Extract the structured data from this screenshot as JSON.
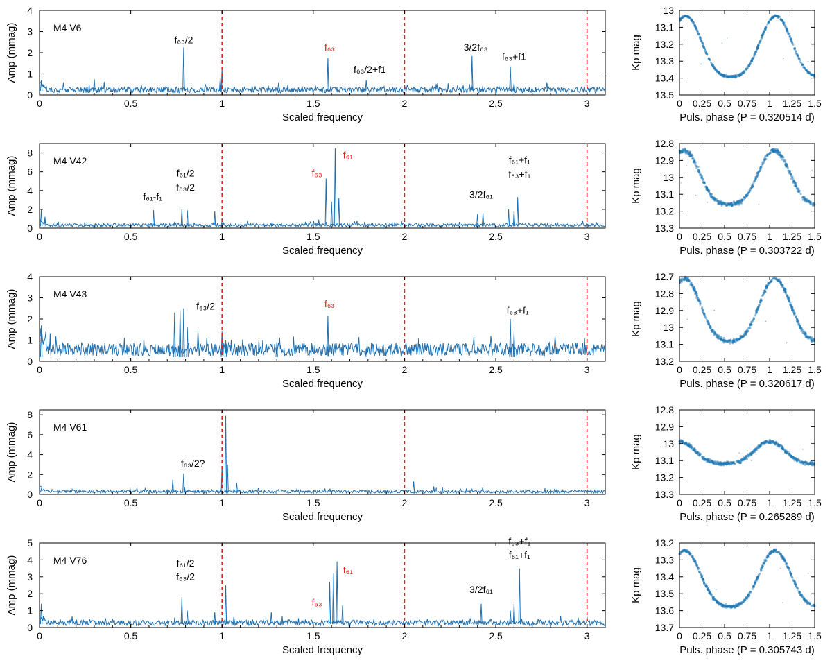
{
  "chart_data": [
    {
      "type": "line",
      "panel": "spectrum",
      "star": "M4 V6",
      "xlabel": "Scaled frequency",
      "ylabel": "Amp (mmag)",
      "xlim": [
        0,
        3.1
      ],
      "ylim": [
        0,
        4
      ],
      "xticks": [
        "0",
        "0.5",
        "1",
        "1.5",
        "2",
        "2.5",
        "3"
      ],
      "yticks": [
        "0",
        "1",
        "2",
        "3",
        "4"
      ],
      "vlines": [
        1,
        2,
        3
      ],
      "noise": 0.3,
      "peaks": [
        [
          0.01,
          0.7
        ],
        [
          0.3,
          0.75
        ],
        [
          0.79,
          2.25
        ],
        [
          1.0,
          1.2
        ],
        [
          0.99,
          0.8
        ],
        [
          1.31,
          0.6
        ],
        [
          1.58,
          1.75
        ],
        [
          1.79,
          0.7
        ],
        [
          2.37,
          1.85
        ],
        [
          2.58,
          1.35
        ],
        [
          2.6,
          0.55
        ],
        [
          2.78,
          0.6
        ]
      ],
      "annotations": [
        {
          "text": "f₆₃/2",
          "color": "#000000",
          "x": 0.79,
          "y": 2.45
        },
        {
          "text": "f₆₃",
          "color": "#e8201c",
          "x": 1.59,
          "y": 2.1
        },
        {
          "text": "f₆₃/2+f1",
          "color": "#000000",
          "x": 1.81,
          "y": 1.05
        },
        {
          "text": "3/2f₆₃",
          "color": "#000000",
          "x": 2.39,
          "y": 2.1
        },
        {
          "text": "f₆₃+f1",
          "color": "#000000",
          "x": 2.6,
          "y": 1.65
        }
      ]
    },
    {
      "type": "scatter",
      "panel": "lightcurve",
      "star": "M4 V6",
      "xlabel": "Puls. phase (P = 0.320514 d)",
      "ylabel": "Kp mag",
      "xlim": [
        0,
        1.5
      ],
      "ylim": [
        13.5,
        13
      ],
      "xticks": [
        "0",
        "0.25",
        "0.5",
        "0.75",
        "1",
        "1.25",
        "1.5"
      ],
      "yticks": [
        "13",
        "13.1",
        "13.2",
        "13.3",
        "13.4",
        "13.5"
      ],
      "mean": 13.245,
      "amplitude": 0.18,
      "min_phase": 0.57,
      "scatter": 0.006
    },
    {
      "type": "line",
      "panel": "spectrum",
      "star": "M4 V42",
      "xlabel": "Scaled frequency",
      "ylabel": "Amp (mmag)",
      "xlim": [
        0,
        3.1
      ],
      "ylim": [
        0,
        9
      ],
      "xticks": [
        "0",
        "0.5",
        "1",
        "1.5",
        "2",
        "2.5",
        "3"
      ],
      "yticks": [
        "0",
        "2",
        "4",
        "6",
        "8"
      ],
      "vlines": [
        1,
        2,
        3
      ],
      "noise": 0.4,
      "peaks": [
        [
          0.01,
          2.0
        ],
        [
          0.03,
          1.2
        ],
        [
          0.625,
          1.9
        ],
        [
          0.78,
          2.0
        ],
        [
          0.81,
          1.9
        ],
        [
          0.96,
          1.8
        ],
        [
          1.53,
          0.9
        ],
        [
          1.57,
          5.3
        ],
        [
          1.6,
          2.8
        ],
        [
          1.62,
          8.5
        ],
        [
          1.64,
          3.2
        ],
        [
          2.4,
          1.5
        ],
        [
          2.43,
          1.6
        ],
        [
          2.57,
          2.0
        ],
        [
          2.6,
          1.8
        ],
        [
          2.62,
          3.3
        ]
      ],
      "annotations": [
        {
          "text": "f₆₁-f₁",
          "color": "#000000",
          "x": 0.62,
          "y": 3.0
        },
        {
          "text": "f₆₁/2",
          "color": "#000000",
          "x": 0.8,
          "y": 5.5
        },
        {
          "text": "f₆₃/2",
          "color": "#000000",
          "x": 0.8,
          "y": 4.0
        },
        {
          "text": "f₆₃",
          "color": "#e8201c",
          "x": 1.52,
          "y": 5.5
        },
        {
          "text": "f₆₁",
          "color": "#e8201c",
          "x": 1.69,
          "y": 7.4
        },
        {
          "text": "3/2f₆₁",
          "color": "#000000",
          "x": 2.42,
          "y": 3.2
        },
        {
          "text": "f₆₁+f₁",
          "color": "#000000",
          "x": 2.63,
          "y": 6.9
        },
        {
          "text": "f₆₃+f₁",
          "color": "#000000",
          "x": 2.63,
          "y": 5.4
        }
      ]
    },
    {
      "type": "scatter",
      "panel": "lightcurve",
      "star": "M4 V42",
      "xlabel": "Puls. phase (P = 0.303722 d)",
      "ylabel": "Kp mag",
      "xlim": [
        0,
        1.5
      ],
      "ylim": [
        13.3,
        12.8
      ],
      "xticks": [
        "0",
        "0.25",
        "0.5",
        "0.75",
        "1",
        "1.25",
        "1.5"
      ],
      "yticks": [
        "12.8",
        "12.9",
        "13",
        "13.1",
        "13.2",
        "13.3"
      ],
      "mean": 13.03,
      "amplitude": 0.16,
      "min_phase": 0.55,
      "scatter": 0.012
    },
    {
      "type": "line",
      "panel": "spectrum",
      "star": "M4 V43",
      "xlabel": "Scaled frequency",
      "ylabel": "Amp (mmag)",
      "xlim": [
        0,
        3.1
      ],
      "ylim": [
        0,
        4
      ],
      "xticks": [
        "0",
        "0.5",
        "1",
        "1.5",
        "2",
        "2.5",
        "3"
      ],
      "yticks": [
        "0",
        "1",
        "2",
        "3",
        "4"
      ],
      "vlines": [
        1,
        2,
        3
      ],
      "noise": 0.7,
      "peaks": [
        [
          0.01,
          1.7
        ],
        [
          0.74,
          2.3
        ],
        [
          0.77,
          2.4
        ],
        [
          0.79,
          2.5
        ],
        [
          0.81,
          1.6
        ],
        [
          1.0,
          1.4
        ],
        [
          1.02,
          1.0
        ],
        [
          1.3,
          0.9
        ],
        [
          1.58,
          2.15
        ],
        [
          1.79,
          0.6
        ],
        [
          2.58,
          2.0
        ],
        [
          2.6,
          1.4
        ]
      ],
      "annotations": [
        {
          "text": "f₆₃/2",
          "color": "#000000",
          "x": 0.91,
          "y": 2.45
        },
        {
          "text": "f₆₃",
          "color": "#e8201c",
          "x": 1.59,
          "y": 2.55
        },
        {
          "text": "f₆₃+f₁",
          "color": "#000000",
          "x": 2.62,
          "y": 2.25
        }
      ]
    },
    {
      "type": "scatter",
      "panel": "lightcurve",
      "star": "M4 V43",
      "xlabel": "Puls. phase (P = 0.320617 d)",
      "ylabel": "Kp mag",
      "xlim": [
        0,
        1.5
      ],
      "ylim": [
        13.2,
        12.7
      ],
      "xticks": [
        "0",
        "0.25",
        "0.5",
        "0.75",
        "1",
        "1.25",
        "1.5"
      ],
      "yticks": [
        "12.7",
        "12.8",
        "12.9",
        "13",
        "13.1",
        "13.2"
      ],
      "mean": 12.93,
      "amplitude": 0.185,
      "min_phase": 0.56,
      "scatter": 0.012
    },
    {
      "type": "line",
      "panel": "spectrum",
      "star": "M4 V61",
      "xlabel": "Scaled frequency",
      "ylabel": "Amp (mmag)",
      "xlim": [
        0,
        3.1
      ],
      "ylim": [
        0,
        8.5
      ],
      "xticks": [
        "0",
        "0.5",
        "1",
        "1.5",
        "2",
        "2.5",
        "3"
      ],
      "yticks": [
        "0",
        "2",
        "4",
        "6",
        "8"
      ],
      "vlines": [
        1,
        2,
        3
      ],
      "noise": 0.35,
      "peaks": [
        [
          0.01,
          0.6
        ],
        [
          0.73,
          1.5
        ],
        [
          0.79,
          2.1
        ],
        [
          1.0,
          2.8
        ],
        [
          1.02,
          7.9
        ],
        [
          1.03,
          3.0
        ],
        [
          1.08,
          1.2
        ],
        [
          2.05,
          1.3
        ],
        [
          2.16,
          0.8
        ]
      ],
      "annotations": [
        {
          "text": "f₆₃/2?",
          "color": "#000000",
          "x": 0.84,
          "y": 2.8
        }
      ]
    },
    {
      "type": "scatter",
      "panel": "lightcurve",
      "star": "M4 V61",
      "xlabel": "Puls. phase (P = 0.265289 d)",
      "ylabel": "Kp mag",
      "xlim": [
        0,
        1.5
      ],
      "ylim": [
        13.3,
        12.8
      ],
      "xticks": [
        "0",
        "0.25",
        "0.5",
        "0.75",
        "1",
        "1.25",
        "1.5"
      ],
      "yticks": [
        "12.8",
        "12.9",
        "13",
        "13.1",
        "13.2",
        "13.3"
      ],
      "mean": 13.065,
      "amplitude": 0.065,
      "min_phase": 0.5,
      "scatter": 0.01
    },
    {
      "type": "line",
      "panel": "spectrum",
      "star": "M4 V76",
      "xlabel": "Scaled frequency",
      "ylabel": "Amp (mmag)",
      "xlim": [
        0,
        3.1
      ],
      "ylim": [
        0,
        5
      ],
      "xticks": [
        "0",
        "0.5",
        "1",
        "1.5",
        "2",
        "2.5",
        "3"
      ],
      "yticks": [
        "0",
        "1",
        "2",
        "3",
        "4",
        "5"
      ],
      "vlines": [
        1,
        2,
        3
      ],
      "noise": 0.35,
      "peaks": [
        [
          0.01,
          1.4
        ],
        [
          0.78,
          1.8
        ],
        [
          0.81,
          1.0
        ],
        [
          0.96,
          0.9
        ],
        [
          1.02,
          2.5
        ],
        [
          1.27,
          0.9
        ],
        [
          1.59,
          2.7
        ],
        [
          1.61,
          3.2
        ],
        [
          1.63,
          3.9
        ],
        [
          1.66,
          1.3
        ],
        [
          2.42,
          1.4
        ],
        [
          2.58,
          1.0
        ],
        [
          2.6,
          1.4
        ],
        [
          2.63,
          3.5
        ]
      ],
      "annotations": [
        {
          "text": "f₆₁/2",
          "color": "#000000",
          "x": 0.8,
          "y": 3.6
        },
        {
          "text": "f₆₃/2",
          "color": "#000000",
          "x": 0.8,
          "y": 2.8
        },
        {
          "text": "f₆₃",
          "color": "#e8201c",
          "x": 1.52,
          "y": 1.3
        },
        {
          "text": "f₆₁",
          "color": "#e8201c",
          "x": 1.69,
          "y": 3.2
        },
        {
          "text": "3/2f₆₁",
          "color": "#000000",
          "x": 2.42,
          "y": 2.05
        },
        {
          "text": "f₆₃+f₁",
          "color": "#000000",
          "x": 2.63,
          "y": 4.9
        },
        {
          "text": "f₆₁+f₁",
          "color": "#000000",
          "x": 2.63,
          "y": 4.1
        }
      ]
    },
    {
      "type": "scatter",
      "panel": "lightcurve",
      "star": "M4 V76",
      "xlabel": "Puls. phase (P = 0.305743 d)",
      "ylabel": "Kp mag",
      "xlim": [
        0,
        1.5
      ],
      "ylim": [
        13.7,
        13.2
      ],
      "xticks": [
        "0",
        "0.25",
        "0.5",
        "0.75",
        "1",
        "1.25",
        "1.5"
      ],
      "yticks": [
        "13.2",
        "13.3",
        "13.4",
        "13.5",
        "13.6",
        "13.7"
      ],
      "mean": 13.44,
      "amplitude": 0.165,
      "min_phase": 0.56,
      "scatter": 0.008
    }
  ]
}
